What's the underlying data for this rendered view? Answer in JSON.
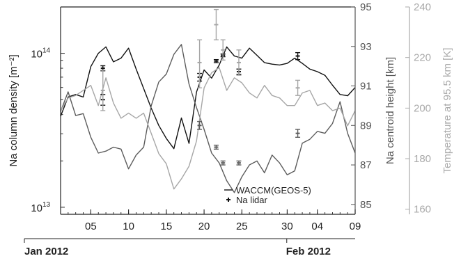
{
  "chart_data": {
    "type": "line",
    "axes": {
      "y_left": {
        "label": "Na column density [m⁻²]",
        "scale": "log",
        "range": [
          9000000000000.0,
          200000000000000.0
        ],
        "ticks": [
          {
            "value": 10000000000000.0,
            "base": "10",
            "exp": "13"
          },
          {
            "value": 100000000000000.0,
            "base": "10",
            "exp": "14"
          }
        ]
      },
      "y_right_1": {
        "label": "Na centroid height [km]",
        "range": [
          84.5,
          95
        ],
        "ticks": [
          85,
          87,
          89,
          91,
          93,
          95
        ],
        "color": "#555555"
      },
      "y_right_2": {
        "label": "Temperature at 95.5 km [K]",
        "range": [
          158,
          240
        ],
        "ticks": [
          160,
          180,
          200,
          220,
          240
        ],
        "color": "#aaaaaa"
      },
      "x": {
        "range": [
          0,
          39
        ],
        "ticks": [
          {
            "day": 4,
            "label": "05"
          },
          {
            "day": 9,
            "label": "10"
          },
          {
            "day": 14,
            "label": "15"
          },
          {
            "day": 19,
            "label": "20"
          },
          {
            "day": 24,
            "label": "25"
          },
          {
            "day": 30,
            "label": "30"
          },
          {
            "day": 34,
            "label": "04"
          },
          {
            "day": 39,
            "label": "09"
          }
        ],
        "month_labels": [
          {
            "day": 0,
            "label": "Jan 2012"
          },
          {
            "day": 34,
            "label": "Feb 2012"
          }
        ]
      }
    },
    "legend": {
      "position": "bottom-right",
      "items": [
        {
          "symbol": "line",
          "label": "WACCM(GEOS-5)"
        },
        {
          "symbol": "cross",
          "label": "Na lidar"
        }
      ]
    },
    "series": [
      {
        "axis": "y_left",
        "kind": "model",
        "color": "#111111",
        "x": [
          0,
          1,
          2,
          3,
          4,
          5,
          6,
          7,
          8,
          9,
          10,
          11,
          12,
          13,
          14,
          15,
          16,
          17,
          18,
          19,
          20,
          21,
          22,
          23,
          24,
          25,
          26,
          27,
          28,
          29,
          30,
          31,
          32,
          33,
          34,
          35,
          36,
          37,
          38,
          39
        ],
        "values": [
          39000000000000.0,
          52000000000000.0,
          54000000000000.0,
          52000000000000.0,
          82000000000000.0,
          100000000000000.0,
          110000000000000.0,
          88000000000000.0,
          93000000000000.0,
          108000000000000.0,
          79000000000000.0,
          59000000000000.0,
          44000000000000.0,
          34000000000000.0,
          28000000000000.0,
          24000000000000.0,
          38000000000000.0,
          26000000000000.0,
          56000000000000.0,
          78000000000000.0,
          69000000000000.0,
          84000000000000.0,
          110000000000000.0,
          96000000000000.0,
          93000000000000.0,
          108000000000000.0,
          97000000000000.0,
          87000000000000.0,
          85000000000000.0,
          84000000000000.0,
          86000000000000.0,
          93000000000000.0,
          86000000000000.0,
          79000000000000.0,
          76000000000000.0,
          72000000000000.0,
          62000000000000.0,
          54000000000000.0,
          53000000000000.0,
          60000000000000.0
        ]
      },
      {
        "axis": "y_right_1",
        "kind": "model",
        "color": "#5c5c5c",
        "x": [
          0,
          1,
          2,
          3,
          4,
          5,
          6,
          7,
          8,
          9,
          10,
          11,
          12,
          13,
          14,
          15,
          16,
          17,
          18,
          19,
          20,
          21,
          22,
          23,
          24,
          25,
          26,
          27,
          28,
          29,
          30,
          31,
          32,
          33,
          34,
          35,
          36,
          37,
          38,
          39
        ],
        "values": [
          89.7,
          90.7,
          89.5,
          89.6,
          88.4,
          87.6,
          87.7,
          87.9,
          87.8,
          86.8,
          87.5,
          87.9,
          90.0,
          91.2,
          91.6,
          92.6,
          93.1,
          91.1,
          89.9,
          88.8,
          87.6,
          87.1,
          86.2,
          85.6,
          86.4,
          87.0,
          87.2,
          86.6,
          87.5,
          87.1,
          86.5,
          86.7,
          88.1,
          88.3,
          88.7,
          88.6,
          89.1,
          90.2,
          88.6,
          87.6
        ]
      },
      {
        "axis": "y_right_2",
        "kind": "model",
        "color": "#a6a6a6",
        "x": [
          0,
          1,
          2,
          3,
          4,
          5,
          6,
          7,
          8,
          9,
          10,
          11,
          12,
          13,
          14,
          15,
          16,
          17,
          18,
          19,
          20,
          21,
          22,
          23,
          24,
          25,
          26,
          27,
          28,
          29,
          30,
          31,
          32,
          33,
          34,
          35,
          36,
          37,
          38,
          39
        ],
        "values": [
          199,
          204,
          205,
          207,
          209,
          201,
          212,
          202,
          196,
          198,
          196,
          198,
          190,
          182,
          178,
          168,
          172,
          177,
          187,
          208,
          214,
          216,
          207,
          212,
          210,
          206,
          204,
          209,
          205,
          204,
          201,
          201,
          206,
          207,
          201,
          202,
          199,
          200,
          193,
          199
        ]
      },
      {
        "axis": "y_left",
        "kind": "lidar",
        "color": "#111111",
        "points": [
          {
            "x": 5.6,
            "y": 50000000000000.0,
            "lo": 46000000000000.0,
            "hi": 54000000000000.0
          },
          {
            "x": 5.6,
            "y": 80000000000000.0,
            "lo": 77000000000000.0,
            "hi": 83000000000000.0
          },
          {
            "x": 18.4,
            "y": 70000000000000.0,
            "lo": 66000000000000.0,
            "hi": 74000000000000.0
          },
          {
            "x": 20.6,
            "y": 89000000000000.0,
            "lo": 87000000000000.0,
            "hi": 91000000000000.0
          },
          {
            "x": 21.5,
            "y": 97000000000000.0,
            "lo": 95000000000000.0,
            "hi": 99000000000000.0
          },
          {
            "x": 23.6,
            "y": 76000000000000.0,
            "lo": 73000000000000.0,
            "hi": 79000000000000.0
          },
          {
            "x": 31.4,
            "y": 96000000000000.0,
            "lo": 91000000000000.0,
            "hi": 101000000000000.0
          }
        ]
      },
      {
        "axis": "y_right_1",
        "kind": "lidar",
        "color": "#5c5c5c",
        "points": [
          {
            "x": 18.4,
            "y": 89.0,
            "lo": 88.8,
            "hi": 89.2
          },
          {
            "x": 20.6,
            "y": 87.9,
            "lo": 87.8,
            "hi": 88.0
          },
          {
            "x": 21.5,
            "y": 87.1,
            "lo": 87.0,
            "hi": 87.2
          },
          {
            "x": 23.6,
            "y": 87.1,
            "lo": 87.0,
            "hi": 87.2
          },
          {
            "x": 31.4,
            "y": 88.6,
            "lo": 88.4,
            "hi": 88.8
          }
        ]
      },
      {
        "axis": "y_right_2",
        "kind": "lidar",
        "color": "#a6a6a6",
        "points": [
          {
            "x": 5.6,
            "y": 207,
            "lo": 199,
            "hi": 215
          },
          {
            "x": 18.4,
            "y": 218,
            "lo": 208,
            "hi": 227
          },
          {
            "x": 20.6,
            "y": 233,
            "lo": 227,
            "hi": 239
          },
          {
            "x": 21.5,
            "y": 223,
            "lo": 219,
            "hi": 227
          },
          {
            "x": 23.6,
            "y": 218,
            "lo": 213,
            "hi": 223
          },
          {
            "x": 31.4,
            "y": 208,
            "lo": 205,
            "hi": 211
          }
        ]
      }
    ]
  }
}
